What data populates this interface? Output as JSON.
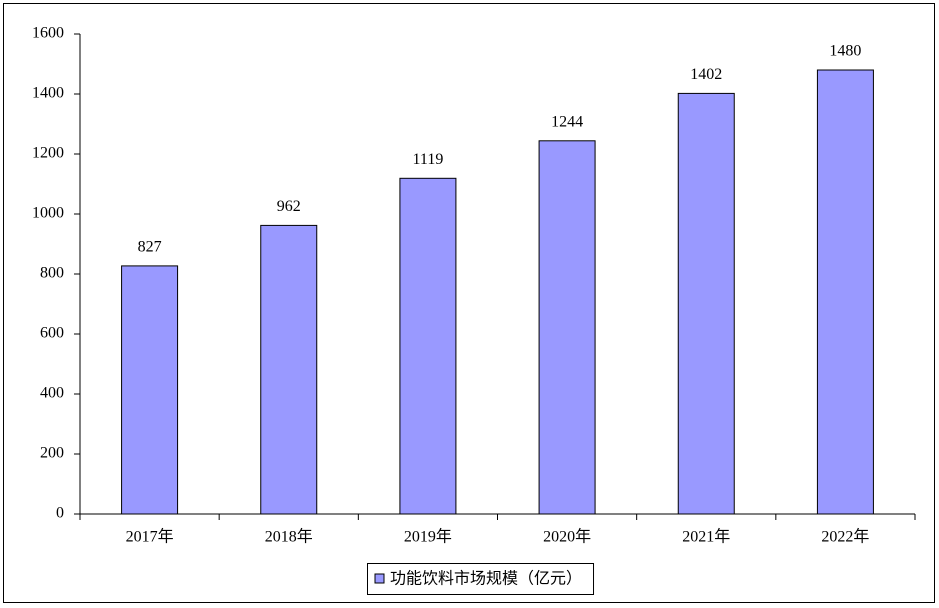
{
  "chart_data": {
    "type": "bar",
    "categories": [
      "2017年",
      "2018年",
      "2019年",
      "2020年",
      "2021年",
      "2022年"
    ],
    "series": [
      {
        "name": "功能饮料市场规模（亿元）",
        "color": "#9999ff",
        "values": [
          827,
          962,
          1119,
          1244,
          1402,
          1480
        ]
      }
    ],
    "ylim": [
      0,
      1600
    ],
    "yticks": [
      0,
      200,
      400,
      600,
      800,
      1000,
      1200,
      1400,
      1600
    ],
    "grid": false,
    "legend": "bottom"
  }
}
